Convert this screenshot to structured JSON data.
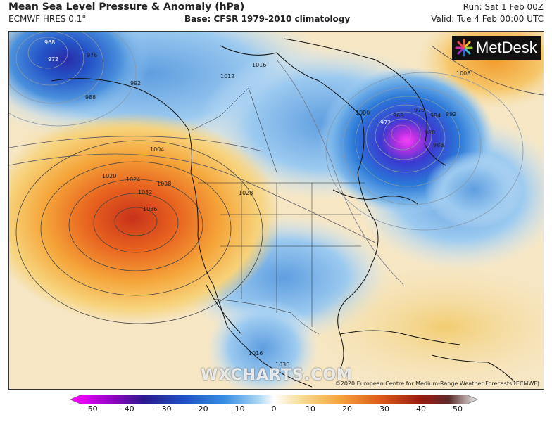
{
  "header": {
    "title": "Mean Sea Level Pressure & Anomaly (hPa)",
    "model": "ECMWF HRES 0.1°",
    "base": "Base: CFSR 1979-2010 climatology",
    "run": "Run: Sat 1 Feb 00Z",
    "valid": "Valid: Tue 4 Feb 00:00 UTC"
  },
  "logo": {
    "text": "MetDesk"
  },
  "watermark": "WXCHARTS.COM",
  "credit": "©2020 European Centre for Medium-Range Weather Forecasts (ECMWF)",
  "map": {
    "isobar_labels": [
      "968",
      "972",
      "976",
      "988",
      "992",
      "1004",
      "1012",
      "1016",
      "1020",
      "1024",
      "1028",
      "1032",
      "1036",
      "968",
      "972",
      "976",
      "980",
      "984",
      "988",
      "992",
      "1000",
      "1008",
      "1028",
      "1016",
      "1036"
    ]
  },
  "colorbar": {
    "ticks": [
      "−50",
      "−40",
      "−30",
      "−20",
      "−10",
      "0",
      "10",
      "20",
      "30",
      "40",
      "50"
    ],
    "colors": [
      "#e600e6",
      "#7a00a8",
      "#1a1a9e",
      "#1f5fd0",
      "#6aa8e0",
      "#ffffff",
      "#f5d890",
      "#f39a2c",
      "#d83a1a",
      "#7a1010",
      "#eeeeee"
    ]
  }
}
